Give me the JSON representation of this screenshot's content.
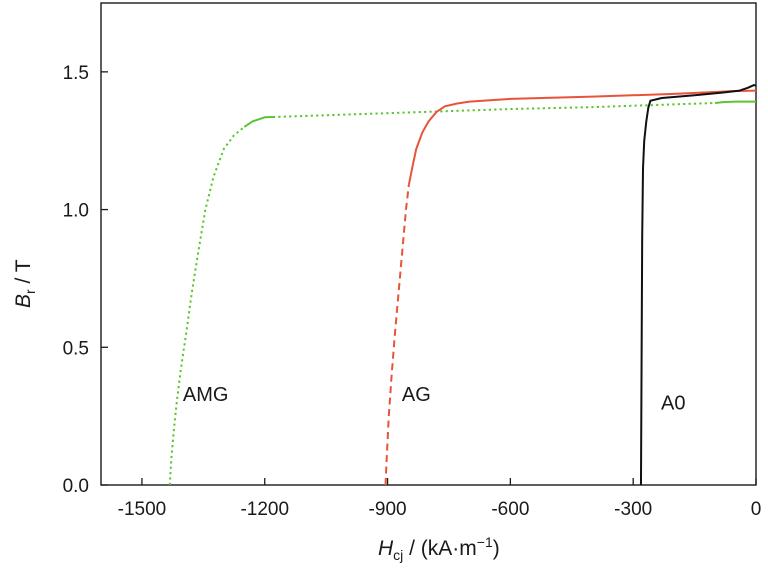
{
  "chart_data": {
    "type": "line",
    "xlabel": {
      "main": "H",
      "sub": "cj",
      "unit": " / (kA·m",
      "exp": "−1",
      "close": ")"
    },
    "ylabel": {
      "main": "B",
      "sub": "r",
      "unit": " / T"
    },
    "xlim": [
      -1600,
      0
    ],
    "ylim": [
      0,
      1.75
    ],
    "x_ticks": [
      -1500,
      -1200,
      -900,
      -600,
      -300,
      0
    ],
    "x_tick_labels": [
      "-1500",
      "-1200",
      "-900",
      "-600",
      "-300",
      "0"
    ],
    "y_ticks": [
      0,
      0.5,
      1.0,
      1.5
    ],
    "y_tick_labels": [
      "0.0",
      "0.5",
      "1.0",
      "1.5"
    ],
    "grid": false,
    "series": [
      {
        "name": "AMG",
        "color": "#5cc431",
        "label_at": [
          -1400,
          0.33
        ],
        "points": [
          [
            -1432,
            0
          ],
          [
            -1428,
            0.1
          ],
          [
            -1422,
            0.2
          ],
          [
            -1415,
            0.3
          ],
          [
            -1405,
            0.42
          ],
          [
            -1392,
            0.55
          ],
          [
            -1378,
            0.7
          ],
          [
            -1362,
            0.85
          ],
          [
            -1345,
            1.0
          ],
          [
            -1325,
            1.12
          ],
          [
            -1300,
            1.22
          ],
          [
            -1275,
            1.27
          ],
          [
            -1250,
            1.3
          ],
          [
            -1230,
            1.32
          ],
          [
            -1200,
            1.335
          ],
          [
            -1000,
            1.345
          ],
          [
            -800,
            1.355
          ],
          [
            -600,
            1.365
          ],
          [
            -400,
            1.372
          ],
          [
            -200,
            1.382
          ],
          [
            -100,
            1.387
          ],
          [
            -80,
            1.39
          ],
          [
            -50,
            1.392
          ],
          [
            0,
            1.392
          ]
        ],
        "segments": [
          {
            "from": -1432,
            "to": -1250,
            "dash": "2.2 3.2"
          },
          {
            "from": -1250,
            "to": -1180,
            "dash": ""
          },
          {
            "from": -1180,
            "to": -100,
            "dash": "2.2 3.2"
          },
          {
            "from": -100,
            "to": 0,
            "dash": ""
          }
        ]
      },
      {
        "name": "AG",
        "color": "#e8533a",
        "label_at": [
          -865,
          0.33
        ],
        "points": [
          [
            -905,
            0
          ],
          [
            -902,
            0.1
          ],
          [
            -897,
            0.25
          ],
          [
            -890,
            0.4
          ],
          [
            -882,
            0.55
          ],
          [
            -873,
            0.7
          ],
          [
            -864,
            0.85
          ],
          [
            -855,
            1.0
          ],
          [
            -848,
            1.09
          ],
          [
            -840,
            1.15
          ],
          [
            -830,
            1.22
          ],
          [
            -815,
            1.28
          ],
          [
            -800,
            1.32
          ],
          [
            -780,
            1.355
          ],
          [
            -760,
            1.375
          ],
          [
            -730,
            1.385
          ],
          [
            -700,
            1.392
          ],
          [
            -600,
            1.402
          ],
          [
            -400,
            1.41
          ],
          [
            -200,
            1.42
          ],
          [
            -100,
            1.427
          ],
          [
            -60,
            1.43
          ],
          [
            0,
            1.432
          ]
        ],
        "segments": [
          {
            "from": -905,
            "to": -848,
            "dash": "7 4.5"
          },
          {
            "from": -848,
            "to": 0,
            "dash": ""
          }
        ]
      },
      {
        "name": "A0",
        "color": "#111111",
        "label_at": [
          -232,
          0.3
        ],
        "points": [
          [
            -281,
            0
          ],
          [
            -280,
            0.3
          ],
          [
            -279,
            0.6
          ],
          [
            -278,
            0.9
          ],
          [
            -276,
            1.15
          ],
          [
            -273,
            1.25
          ],
          [
            -268,
            1.32
          ],
          [
            -263,
            1.37
          ],
          [
            -258,
            1.395
          ],
          [
            -230,
            1.405
          ],
          [
            -150,
            1.415
          ],
          [
            -80,
            1.425
          ],
          [
            -40,
            1.432
          ],
          [
            -20,
            1.442
          ],
          [
            -5,
            1.452
          ],
          [
            0,
            1.45
          ]
        ],
        "segments": [
          {
            "from": -281,
            "to": 0,
            "dash": ""
          }
        ]
      }
    ]
  }
}
